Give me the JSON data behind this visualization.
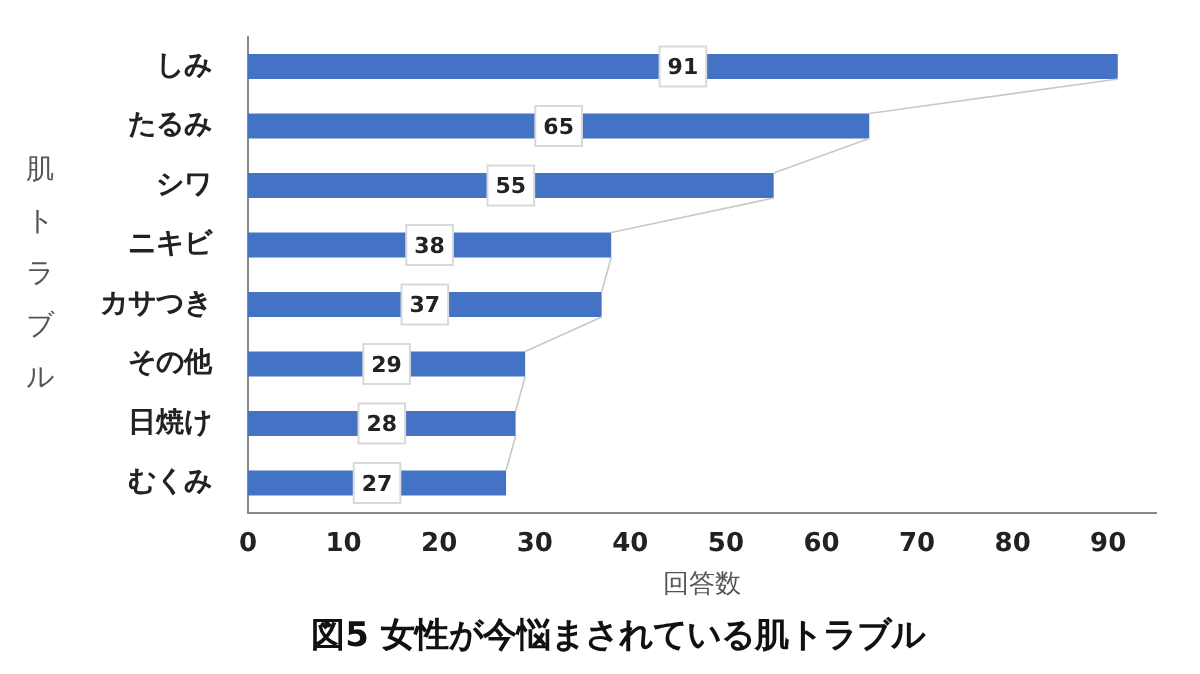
{
  "chart_data": {
    "type": "bar",
    "orientation": "horizontal",
    "title": "図5 女性が今悩まされている肌トラブル",
    "xlabel": "回答数",
    "ylabel": "肌トラブル",
    "categories": [
      "しみ",
      "たるみ",
      "シワ",
      "ニキビ",
      "カサつき",
      "その他",
      "日焼け",
      "むくみ"
    ],
    "values": [
      91,
      65,
      55,
      38,
      37,
      29,
      28,
      27
    ],
    "color": "#4472c4",
    "xlim": [
      0,
      95
    ],
    "xticks": [
      0,
      10,
      20,
      30,
      40,
      50,
      60,
      70,
      80,
      90
    ],
    "grid": false,
    "legend": false,
    "data_labels": true
  }
}
